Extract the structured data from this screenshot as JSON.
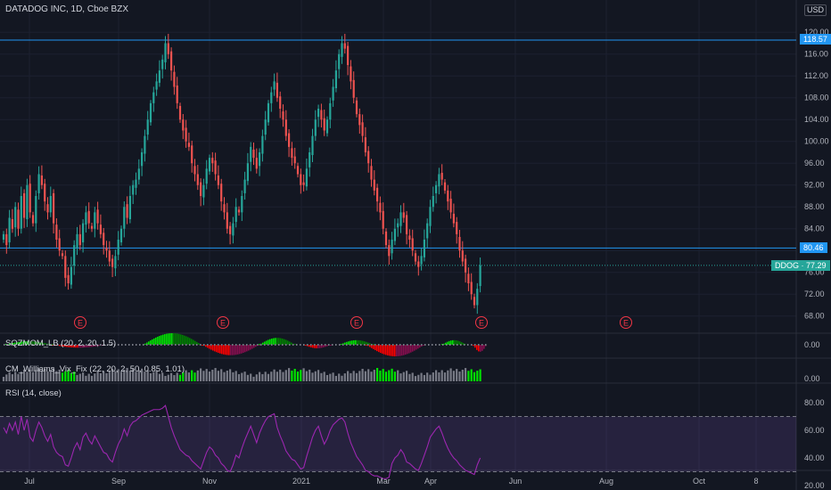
{
  "header": {
    "title": "DATADOG INC, 1D, Cboe BZX",
    "currency": "USD"
  },
  "price_axis": {
    "ticks": [
      "120.00",
      "116.00",
      "112.00",
      "108.00",
      "104.00",
      "100.00",
      "96.00",
      "92.00",
      "88.00",
      "84.00",
      "80.00",
      "76.00",
      "72.00",
      "68.00"
    ],
    "resistance_tag": "118.57",
    "support_tag": "80.46",
    "last_price_symbol": "DDOG",
    "last_price": "77.29"
  },
  "time_axis": {
    "ticks": [
      "Jul",
      "Sep",
      "Nov",
      "2021",
      "Mar",
      "Apr",
      "Jun",
      "Aug",
      "Oct",
      "8"
    ]
  },
  "earnings_markers": [
    "E",
    "E",
    "E",
    "E",
    "E"
  ],
  "indicators": {
    "squeeze": {
      "title": "SQZMOM_LB (20, 2, 20, 1.5)",
      "axis_label": "0.00"
    },
    "vix_fix": {
      "title": "CM_Williams_Vix_Fix (22, 20, 2, 50, 0.85, 1.01)",
      "axis_label": "0.00"
    },
    "rsi": {
      "title": "RSI (14, close)",
      "ticks": [
        "80.00",
        "60.00",
        "40.00",
        "20.00"
      ]
    }
  },
  "colors": {
    "background": "#131722",
    "up": "#26a69a",
    "down": "#ef5350",
    "level_line": "#2196f3",
    "rsi_line": "#9c27b0",
    "bright_green": "#00e400",
    "maroon": "#880e4f",
    "earnings": "#f23645"
  },
  "chart_data": {
    "type": "candlestick",
    "symbol": "DDOG",
    "ylim": [
      66,
      121
    ],
    "levels": [
      118.57,
      80.46
    ],
    "last_close": 77.29,
    "close": [
      83,
      81,
      86,
      84,
      88,
      84,
      90,
      86,
      92,
      87,
      85,
      90,
      94,
      92,
      89,
      87,
      90,
      85,
      82,
      80,
      79,
      75,
      74,
      77,
      81,
      83,
      81,
      85,
      87,
      85,
      84,
      87,
      85,
      83,
      81,
      80,
      78,
      77,
      79,
      82,
      84,
      88,
      86,
      90,
      92,
      93,
      95,
      98,
      101,
      104,
      107,
      109,
      111,
      113,
      115,
      118,
      116,
      113,
      110,
      107,
      104,
      102,
      100,
      99,
      96,
      94,
      92,
      90,
      92,
      95,
      97,
      96,
      94,
      92,
      89,
      87,
      84,
      83,
      85,
      88,
      87,
      90,
      93,
      96,
      99,
      97,
      95,
      98,
      101,
      104,
      107,
      109,
      111,
      108,
      106,
      104,
      101,
      99,
      97,
      96,
      94,
      92,
      92,
      95,
      98,
      101,
      104,
      106,
      104,
      102,
      104,
      107,
      110,
      113,
      116,
      118,
      117,
      114,
      111,
      108,
      105,
      103,
      101,
      98,
      96,
      93,
      91,
      89,
      87,
      84,
      81,
      79,
      82,
      84,
      85,
      87,
      86,
      83,
      82,
      80,
      78,
      77,
      79,
      82,
      85,
      88,
      90,
      92,
      94,
      93,
      91,
      89,
      87,
      85,
      83,
      80,
      78,
      76,
      74,
      72,
      70,
      73,
      77.29
    ],
    "rsi": [
      62,
      58,
      65,
      60,
      66,
      57,
      70,
      60,
      68,
      55,
      52,
      60,
      66,
      62,
      56,
      52,
      57,
      48,
      44,
      42,
      41,
      35,
      34,
      40,
      47,
      51,
      46,
      55,
      58,
      53,
      50,
      56,
      52,
      48,
      44,
      43,
      39,
      37,
      44,
      50,
      54,
      61,
      56,
      63,
      66,
      67,
      69,
      71,
      72,
      73,
      74,
      75,
      75,
      75,
      76,
      78,
      70,
      62,
      56,
      51,
      46,
      44,
      42,
      41,
      38,
      36,
      34,
      32,
      38,
      44,
      48,
      46,
      42,
      40,
      36,
      34,
      31,
      30,
      35,
      42,
      40,
      47,
      53,
      58,
      63,
      57,
      51,
      58,
      63,
      67,
      70,
      71,
      72,
      62,
      56,
      51,
      45,
      42,
      39,
      38,
      35,
      32,
      33,
      41,
      48,
      55,
      60,
      63,
      56,
      50,
      54,
      60,
      64,
      66,
      68,
      69,
      66,
      58,
      51,
      46,
      41,
      38,
      35,
      31,
      30,
      28,
      27,
      27,
      26,
      25,
      25,
      26,
      36,
      40,
      42,
      46,
      43,
      37,
      36,
      34,
      32,
      31,
      36,
      42,
      48,
      55,
      58,
      61,
      63,
      58,
      52,
      47,
      43,
      40,
      38,
      35,
      33,
      31,
      30,
      29,
      28,
      35,
      40
    ]
  }
}
